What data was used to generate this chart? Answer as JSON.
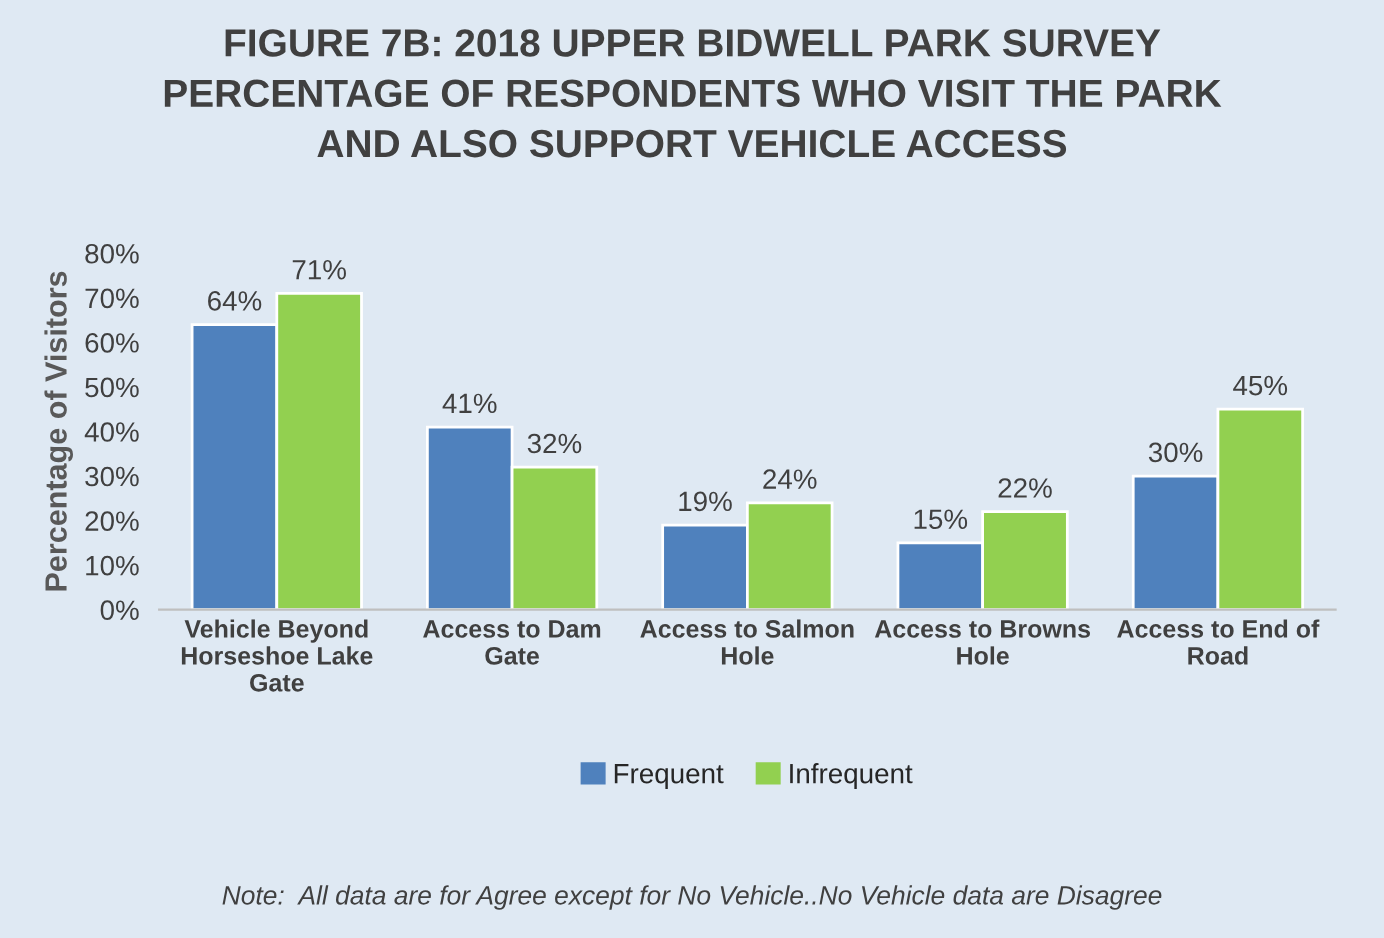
{
  "chart_data": {
    "type": "bar",
    "title": "FIGURE 7B: 2018 UPPER BIDWELL PARK SURVEY\nPERCENTAGE OF RESPONDENTS WHO VISIT THE PARK\nAND ALSO SUPPORT VEHICLE ACCESS",
    "ylabel": "Percentage of Visitors",
    "categories": [
      "Vehicle Beyond\nHorseshoe Lake\nGate",
      "Access to Dam\nGate",
      "Access to Salmon\nHole",
      "Access to Browns\nHole",
      "Access to End of\nRoad"
    ],
    "series": [
      {
        "name": "Frequent",
        "color": "#4f81bd",
        "values": [
          64,
          41,
          19,
          15,
          30
        ],
        "value_labels": [
          "64%",
          "41%",
          "19%",
          "15%",
          "30%"
        ]
      },
      {
        "name": "Infrequent",
        "color": "#92d050",
        "values": [
          71,
          32,
          24,
          22,
          45
        ],
        "value_labels": [
          "71%",
          "32%",
          "24%",
          "22%",
          "45%"
        ]
      }
    ],
    "ylim": [
      0,
      80
    ],
    "yticks": [
      {
        "value": 0,
        "label": "0%"
      },
      {
        "value": 10,
        "label": "10%"
      },
      {
        "value": 20,
        "label": "20%"
      },
      {
        "value": 30,
        "label": "30%"
      },
      {
        "value": 40,
        "label": "40%"
      },
      {
        "value": 50,
        "label": "50%"
      },
      {
        "value": 60,
        "label": "60%"
      },
      {
        "value": 70,
        "label": "70%"
      },
      {
        "value": 80,
        "label": "80%"
      }
    ],
    "legend": "bottom",
    "grid": false,
    "annotations": [
      "Note:  All data are for Agree except for No Vehicle..No Vehicle data are Disagree"
    ]
  }
}
